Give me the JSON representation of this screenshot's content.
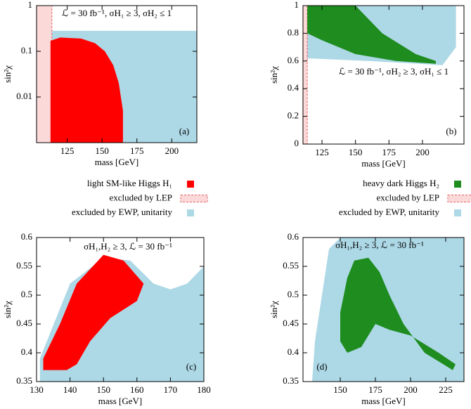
{
  "chart_data": [
    {
      "type": "area",
      "annotation": "ℒ = 30 fb⁻¹,  σH₁ ≥ 3,  σH₂ ≤ 1",
      "panel_label": "(a)",
      "xlabel": "mass [GeV]",
      "ylabel": "sin²χ",
      "yscale": "log",
      "legend": true,
      "xlim": [
        103,
        218
      ],
      "xticks": [
        125,
        150,
        175,
        200
      ],
      "ylim": [
        0.001,
        1
      ],
      "yticks": [
        0.01,
        0.1,
        1
      ],
      "series": [
        {
          "name": "excluded by EWP, unitarity",
          "color": "#add8e6",
          "x": [
            107,
            107,
            218,
            218
          ],
          "y": [
            0.001,
            0.28,
            0.28,
            0.001
          ]
        },
        {
          "name": "excluded by LEP",
          "color": "#fcd9d9",
          "edgecolor": "#e06060",
          "x": [
            103,
            114,
            114,
            103
          ],
          "y": [
            0.001,
            0.001,
            1,
            1
          ]
        },
        {
          "name": "light SM-like Higgs H₁",
          "color": "#ff0000",
          "x": [
            113,
            113,
            120,
            135,
            145,
            152,
            158,
            162,
            165,
            165
          ],
          "y": [
            0.001,
            0.17,
            0.2,
            0.19,
            0.15,
            0.1,
            0.05,
            0.02,
            0.005,
            0.001
          ]
        }
      ]
    },
    {
      "type": "area",
      "annotation": "ℒ = 30 fb⁻¹,  σH₂ ≥ 3,  σH₁ ≤ 1",
      "panel_label": "(b)",
      "xlabel": "mass [GeV]",
      "ylabel": "sin²χ",
      "legend": true,
      "xlim": [
        110.8,
        231
      ],
      "xticks": [
        125,
        150,
        175,
        200
      ],
      "ylim": [
        0,
        1
      ],
      "yticks": [
        0,
        0.2,
        0.4,
        0.6,
        0.8,
        1
      ],
      "series": [
        {
          "name": "excluded by EWP, unitarity",
          "color": "#add8e6",
          "x": [
            113,
            225,
            225,
            215,
            160,
            113
          ],
          "y": [
            1,
            1,
            0.7,
            0.57,
            0.6,
            0.62
          ]
        },
        {
          "name": "excluded by LEP",
          "color": "#fcd9d9",
          "edgecolor": "#e06060",
          "x": [
            110.8,
            114,
            114,
            110.8
          ],
          "y": [
            0,
            0,
            1,
            1
          ]
        },
        {
          "name": "heavy dark Higgs H₂",
          "color": "#1e8c1e",
          "x": [
            114,
            150,
            170,
            195,
            210,
            210,
            180,
            150,
            125,
            114
          ],
          "y": [
            1,
            1,
            0.8,
            0.65,
            0.6,
            0.58,
            0.6,
            0.65,
            0.75,
            0.8
          ]
        }
      ]
    },
    {
      "type": "area",
      "annotation": "σH₁,H₂ ≥ 3,  ℒ = 30 fb⁻¹",
      "panel_label": "(c)",
      "xlabel": "mass [GeV]",
      "ylabel": "sin²χ",
      "xlim": [
        130,
        180
      ],
      "xticks": [
        130,
        140,
        150,
        160,
        170,
        180
      ],
      "ylim": [
        0.35,
        0.6
      ],
      "yticks": [
        0.35,
        0.4,
        0.45,
        0.5,
        0.55,
        0.6
      ],
      "series": [
        {
          "name": "excluded by EWP, unitarity",
          "color": "#add8e6",
          "x": [
            131,
            131,
            140,
            150,
            158,
            165,
            170,
            175,
            180,
            180
          ],
          "y": [
            0.35,
            0.39,
            0.52,
            0.565,
            0.56,
            0.52,
            0.51,
            0.52,
            0.55,
            0.35
          ]
        },
        {
          "name": "light SM-like Higgs H₁",
          "color": "#ff0000",
          "x": [
            132,
            132,
            137,
            142,
            150,
            156,
            162,
            160,
            152,
            146,
            142,
            139
          ],
          "y": [
            0.37,
            0.39,
            0.45,
            0.52,
            0.57,
            0.56,
            0.52,
            0.49,
            0.46,
            0.42,
            0.38,
            0.37
          ]
        }
      ]
    },
    {
      "type": "area",
      "annotation": "σH₁,H₂ ≥ 3,  ℒ = 30 fb⁻¹",
      "panel_label": "(d)",
      "xlabel": "mass [GeV]",
      "ylabel": "sin²χ",
      "xlim": [
        123.5,
        238
      ],
      "xticks": [
        150,
        175,
        200,
        225
      ],
      "ylim": [
        0.35,
        0.6
      ],
      "yticks": [
        0.35,
        0.4,
        0.45,
        0.5,
        0.55,
        0.6
      ],
      "series": [
        {
          "name": "excluded by EWP, unitarity",
          "color": "#add8e6",
          "x": [
            130,
            132,
            137,
            142,
            150,
            238,
            238
          ],
          "y": [
            0.35,
            0.42,
            0.5,
            0.58,
            0.6,
            0.6,
            0.35
          ]
        },
        {
          "name": "heavy dark Higgs H₂",
          "color": "#1e8c1e",
          "x": [
            150,
            155,
            160,
            170,
            178,
            185,
            195,
            210,
            230,
            232,
            220,
            200,
            185,
            175,
            165,
            155,
            150
          ],
          "y": [
            0.47,
            0.53,
            0.56,
            0.565,
            0.54,
            0.5,
            0.45,
            0.4,
            0.37,
            0.38,
            0.4,
            0.43,
            0.44,
            0.45,
            0.41,
            0.4,
            0.42
          ]
        }
      ]
    }
  ]
}
